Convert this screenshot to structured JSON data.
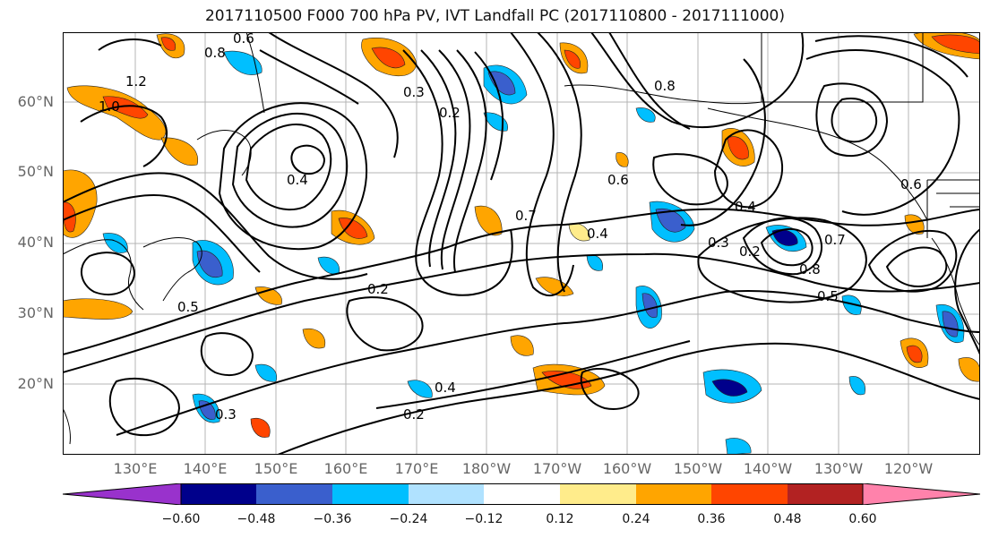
{
  "title": "2017110500 F000 700 hPa PV, IVT Landfall PC (2017110800 - 2017111000)",
  "lat_labels": [
    "60°N",
    "50°N",
    "40°N",
    "30°N",
    "20°N"
  ],
  "lon_labels": [
    "130°E",
    "140°E",
    "150°E",
    "160°E",
    "170°E",
    "180°W",
    "170°W",
    "160°W",
    "150°W",
    "140°W",
    "130°W",
    "120°W"
  ],
  "contour_labels": [
    "0.6",
    "0.8",
    "1.0",
    "1.2",
    "0.3",
    "0.2",
    "0.4",
    "0.5",
    "0.7",
    "0.8",
    "0.2",
    "0.4",
    "0.6",
    "0.3",
    "0.2",
    "0.4",
    "0.5",
    "0.6",
    "0.7",
    "0.8",
    "0.4",
    "0.2",
    "0.3"
  ],
  "colorbar": {
    "ticks": [
      "−0.60",
      "−0.48",
      "−0.36",
      "−0.24",
      "−0.12",
      "0.12",
      "0.24",
      "0.36",
      "0.48",
      "0.60"
    ],
    "colors": [
      "#9932cc",
      "#00008b",
      "#3a5fcd",
      "#00bfff",
      "#b0e2ff",
      "#ffffff",
      "#ffec8b",
      "#ffa500",
      "#ff4500",
      "#b22222",
      "#ff82ab"
    ]
  }
}
